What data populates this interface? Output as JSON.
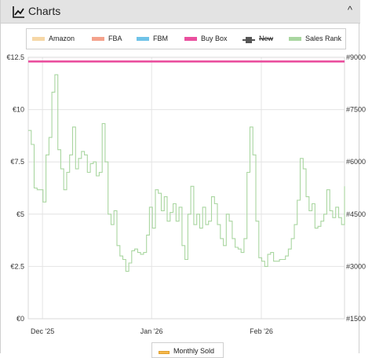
{
  "panel": {
    "title": "Charts",
    "icon": "line-chart-icon",
    "collapse_icon": "chevron-up-icon",
    "collapse_glyph": "^"
  },
  "legend": [
    {
      "label": "Amazon",
      "color": "#f6d7a6",
      "state": "on"
    },
    {
      "label": "FBA",
      "color": "#f4a28c",
      "state": "on"
    },
    {
      "label": "FBM",
      "color": "#6fc3e8",
      "state": "on"
    },
    {
      "label": "Buy Box",
      "color": "#ea4f9e",
      "state": "on"
    },
    {
      "label": "New",
      "color": "#555555",
      "state": "off"
    },
    {
      "label": "Sales Rank",
      "color": "#a9d6a0",
      "state": "on"
    }
  ],
  "bottom_legend": {
    "label": "Monthly Sold",
    "color": "#f6b84b"
  },
  "chart_data": {
    "type": "line",
    "x_ticks": [
      "Dec '25",
      "Jan '26",
      "Feb '26"
    ],
    "y_left": {
      "ticks": [
        "€0",
        "€2.5",
        "€5",
        "€7.5",
        "€10",
        "€12.5"
      ],
      "range": [
        0,
        12.5
      ],
      "unit": "€"
    },
    "y_right": {
      "ticks": [
        "#1500",
        "#3000",
        "#4500",
        "#6000",
        "#7500",
        "#9000"
      ],
      "range": [
        1500,
        9000
      ]
    },
    "grid": true,
    "series": [
      {
        "name": "Buy Box",
        "color": "#ea4f9e",
        "axis": "left",
        "values": [
          12.3,
          12.3,
          12.3,
          12.3,
          12.3,
          12.3,
          12.3,
          12.3,
          12.3,
          12.3,
          12.3,
          12.3
        ]
      },
      {
        "name": "Sales Rank",
        "color": "#a9d6a0",
        "axis": "right",
        "values": [
          6900,
          6500,
          5250,
          5200,
          5200,
          4850,
          6200,
          6700,
          8000,
          8500,
          6350,
          5800,
          5200,
          5700,
          6200,
          7000,
          5800,
          6100,
          6300,
          6200,
          5700,
          5950,
          6000,
          5600,
          5700,
          7100,
          6000,
          4500,
          4200,
          4600,
          3600,
          3300,
          3200,
          2860,
          3100,
          3450,
          3500,
          3400,
          3350,
          3400,
          3900,
          4700,
          4100,
          5200,
          5100,
          4600,
          5000,
          4300,
          4550,
          4800,
          4300,
          4700,
          3600,
          3200,
          4500,
          5300,
          4200,
          4500,
          4100,
          4700,
          4200,
          4300,
          5000,
          4800,
          4200,
          3800,
          3600,
          4500,
          4300,
          3800,
          3550,
          3500,
          3400,
          3800,
          5700,
          7000,
          6200,
          4300,
          3250,
          3150,
          3000,
          3350,
          3400,
          3150,
          3150,
          3200,
          3200,
          3300,
          3500,
          3800,
          4200,
          4900,
          6100,
          5800,
          5000,
          4600,
          4800,
          4100,
          4150,
          4300,
          4500,
          5200,
          4600,
          4400,
          4700,
          4400,
          4200,
          5300
        ]
      }
    ]
  }
}
